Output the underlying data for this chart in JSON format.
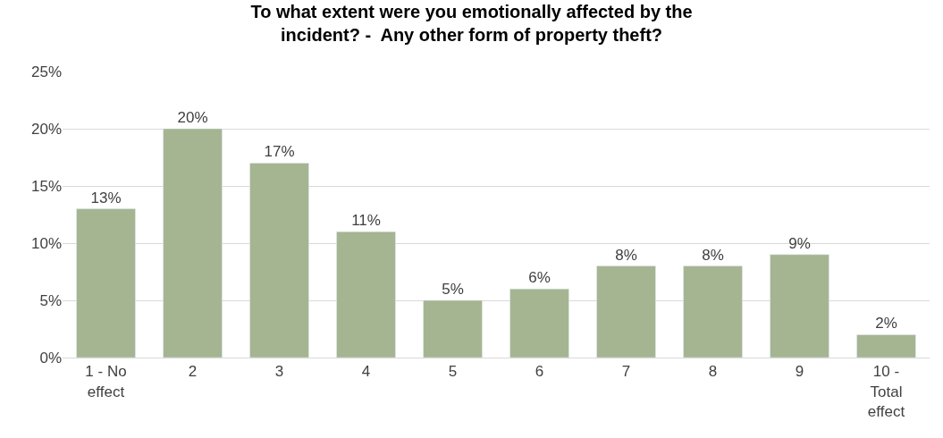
{
  "chart_data": {
    "type": "bar",
    "title": "To what extent were you emotionally affected by the\nincident? -  Any other form of property theft?",
    "categories": [
      "1 - No\neffect",
      "2",
      "3",
      "4",
      "5",
      "6",
      "7",
      "8",
      "9",
      "10 -\nTotal\neffect"
    ],
    "values": [
      13,
      20,
      17,
      11,
      5,
      6,
      8,
      8,
      9,
      2
    ],
    "value_labels": [
      "13%",
      "20%",
      "17%",
      "11%",
      "5%",
      "6%",
      "8%",
      "8%",
      "9%",
      "2%"
    ],
    "color": "#a5b592",
    "ylim": [
      0,
      25
    ],
    "yticks": [
      {
        "value": 0,
        "label": "0%"
      },
      {
        "value": 5,
        "label": "5%"
      },
      {
        "value": 10,
        "label": "10%"
      },
      {
        "value": 15,
        "label": "15%"
      },
      {
        "value": 20,
        "label": "20%"
      },
      {
        "value": 25,
        "label": "25%"
      }
    ],
    "grid": "y",
    "legend": false
  }
}
